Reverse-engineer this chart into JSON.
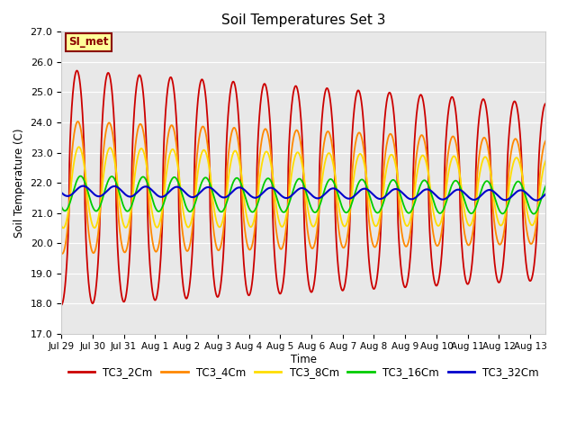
{
  "title": "Soil Temperatures Set 3",
  "ylabel": "Soil Temperature (C)",
  "xlabel": "Time",
  "ylim": [
    17.0,
    27.0
  ],
  "yticks": [
    17.0,
    18.0,
    19.0,
    20.0,
    21.0,
    22.0,
    23.0,
    24.0,
    25.0,
    26.0,
    27.0
  ],
  "bg_color": "#e8e8e8",
  "fig_color": "#ffffff",
  "series_order": [
    "TC3_2Cm",
    "TC3_4Cm",
    "TC3_8Cm",
    "TC3_16Cm",
    "TC3_32Cm"
  ],
  "series": {
    "TC3_2Cm": {
      "color": "#cc0000",
      "lw": 1.3,
      "amplitude": 3.9,
      "mean": 21.85,
      "phase": 0.0,
      "phase_decay": 0.0,
      "amp_decay": 0.25,
      "sharpness": 1.8
    },
    "TC3_4Cm": {
      "color": "#ff8800",
      "lw": 1.3,
      "amplitude": 2.2,
      "mean": 21.85,
      "phase": 0.18,
      "phase_decay": 0.0,
      "amp_decay": 0.22,
      "sharpness": 1.5
    },
    "TC3_8Cm": {
      "color": "#ffdd00",
      "lw": 1.3,
      "amplitude": 1.35,
      "mean": 21.85,
      "phase": 0.38,
      "phase_decay": 0.0,
      "amp_decay": 0.18,
      "sharpness": 1.2
    },
    "TC3_16Cm": {
      "color": "#00cc00",
      "lw": 1.3,
      "amplitude": 0.58,
      "mean": 21.65,
      "phase": 0.72,
      "phase_decay": 0.0,
      "amp_decay": 0.08,
      "sharpness": 1.0
    },
    "TC3_32Cm": {
      "color": "#0000cc",
      "lw": 1.5,
      "amplitude": 0.17,
      "mean": 21.73,
      "phase": 1.25,
      "phase_decay": 0.0,
      "amp_decay": 0.03,
      "sharpness": 1.0
    }
  },
  "xtick_labels": [
    "Jul 29",
    "Jul 30",
    "Jul 31",
    "Aug 1",
    "Aug 2",
    "Aug 3",
    "Aug 4",
    "Aug 5",
    "Aug 6",
    "Aug 7",
    "Aug 8",
    "Aug 9",
    "Aug 10",
    "Aug 11",
    "Aug 12",
    "Aug 13"
  ],
  "n_points": 1440,
  "n_days": 15.5,
  "annotation_text": "SI_met",
  "annotation_bg": "#ffff99",
  "annotation_edge": "#8b0000"
}
